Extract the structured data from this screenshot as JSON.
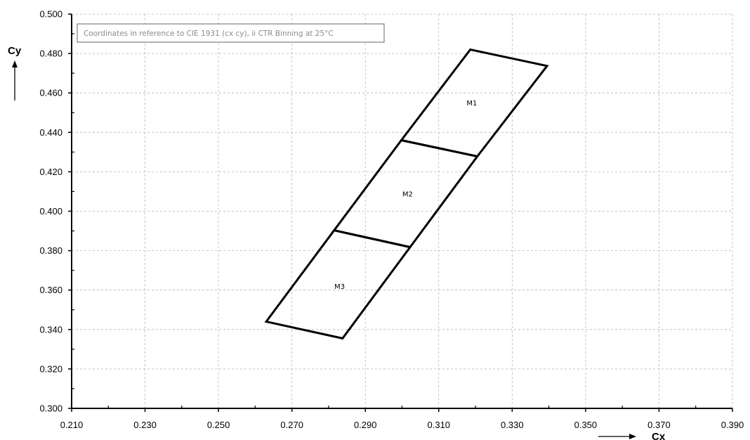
{
  "chart_data": {
    "type": "scatter",
    "title": "",
    "xlabel": "Cx",
    "ylabel": "Cy",
    "xlim": [
      0.21,
      0.39
    ],
    "ylim": [
      0.3,
      0.5
    ],
    "xticks": [
      "0.210",
      "0.230",
      "0.250",
      "0.270",
      "0.290",
      "0.310",
      "0.330",
      "0.350",
      "0.370",
      "0.390"
    ],
    "yticks": [
      "0.300",
      "0.320",
      "0.340",
      "0.360",
      "0.380",
      "0.400",
      "0.420",
      "0.440",
      "0.460",
      "0.480",
      "0.500"
    ],
    "grid": true,
    "annotation": "Coordinates in reference to CIE 1931 (cx cy), ii CTR Binning at 25°C",
    "regions": [
      {
        "name": "M1",
        "label_at": [
          0.319,
          0.455
        ],
        "points": [
          [
            0.2998,
            0.436
          ],
          [
            0.3186,
            0.482
          ],
          [
            0.3395,
            0.4737
          ],
          [
            0.3205,
            0.4278
          ]
        ]
      },
      {
        "name": "M2",
        "label_at": [
          0.3015,
          0.409
        ],
        "points": [
          [
            0.2815,
            0.3903
          ],
          [
            0.2998,
            0.436
          ],
          [
            0.3205,
            0.4278
          ],
          [
            0.3022,
            0.3818
          ]
        ]
      },
      {
        "name": "M3",
        "label_at": [
          0.283,
          0.362
        ],
        "points": [
          [
            0.263,
            0.344
          ],
          [
            0.2815,
            0.3903
          ],
          [
            0.3022,
            0.3818
          ],
          [
            0.2838,
            0.3355
          ]
        ]
      }
    ]
  }
}
